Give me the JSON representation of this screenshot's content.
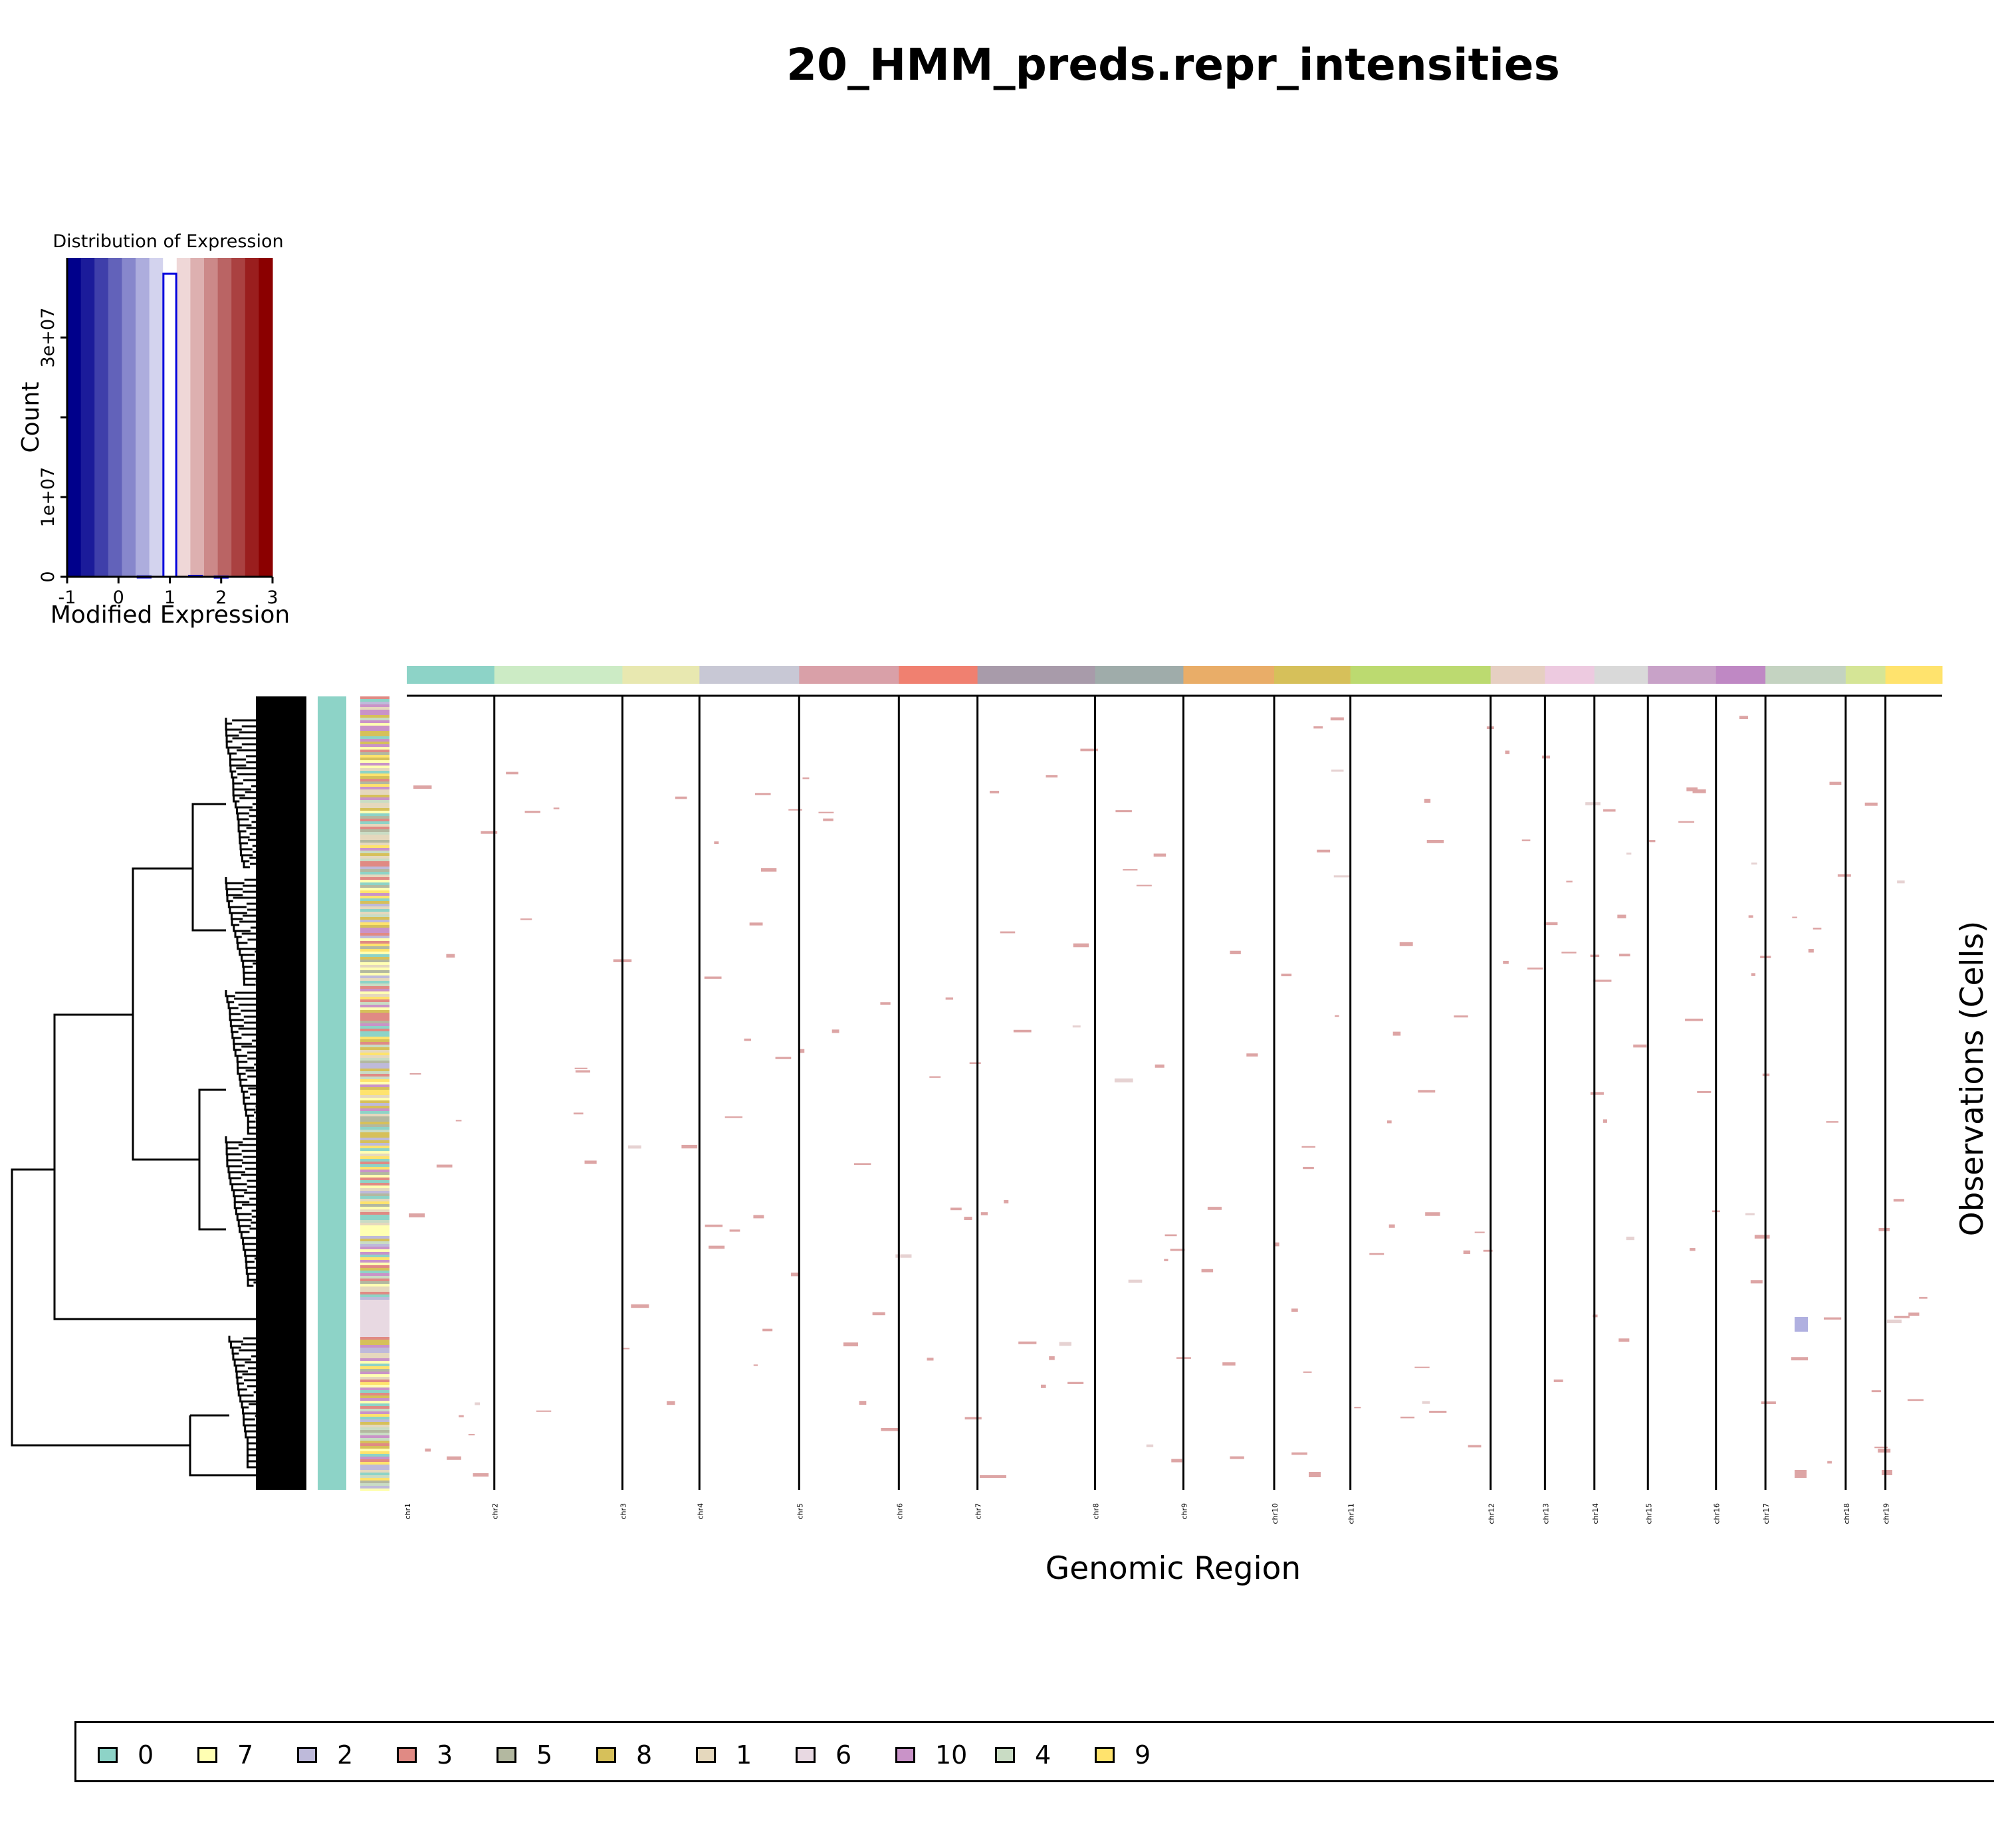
{
  "chart_data": {
    "type": "heatmap",
    "title": "20_HMM_preds.repr_intensities",
    "xlabel": "Genomic Region",
    "ylabel": "Observations (Cells)",
    "histogram": {
      "title": "Distribution of Expression",
      "xlabel": "Modified Expression",
      "ylabel": "Count",
      "x_ticks": [
        "-1",
        "0",
        "1",
        "2",
        "3"
      ],
      "y_ticks": [
        "0",
        "1e+07",
        "3e+07"
      ],
      "xlim": [
        -1,
        3
      ],
      "ylim": [
        0,
        40000000
      ],
      "bins": [
        {
          "x": 1.0,
          "count": 38000000
        },
        {
          "x": 1.5,
          "count": 120000
        },
        {
          "x": 0.5,
          "count": 40000
        },
        {
          "x": 2.0,
          "count": 30000
        }
      ],
      "color_scale": [
        "#00008B",
        "#1B1B9A",
        "#3F3FAA",
        "#6262BA",
        "#8787CC",
        "#ADADDD",
        "#D3D3EE",
        "#FFFFFF",
        "#EFD7D7",
        "#DDB0B0",
        "#CC8989",
        "#BA6464",
        "#AA4141",
        "#9A1E1E",
        "#8B0000"
      ]
    },
    "chromosomes": [
      {
        "name": "chr1",
        "length": 1.08,
        "color": "#8DD3C7"
      },
      {
        "name": "chr2",
        "length": 1.58,
        "color": "#CCEBC5"
      },
      {
        "name": "chr3",
        "length": 0.95,
        "color": "#E8E8B0"
      },
      {
        "name": "chr4",
        "length": 1.23,
        "color": "#C8C8D5"
      },
      {
        "name": "chr5",
        "length": 1.23,
        "color": "#D9A0A8"
      },
      {
        "name": "chr6",
        "length": 0.97,
        "color": "#F08070"
      },
      {
        "name": "chr7",
        "length": 1.45,
        "color": "#A89BAA"
      },
      {
        "name": "chr8",
        "length": 1.09,
        "color": "#9FACAA"
      },
      {
        "name": "chr9",
        "length": 1.12,
        "color": "#E9AD68"
      },
      {
        "name": "chr10",
        "length": 0.94,
        "color": "#D6C05A"
      },
      {
        "name": "chr11",
        "length": 1.73,
        "color": "#BCDA70"
      },
      {
        "name": "chr12",
        "length": 0.67,
        "color": "#E6CFC2"
      },
      {
        "name": "chr13",
        "length": 0.61,
        "color": "#EDCAE0"
      },
      {
        "name": "chr14",
        "length": 0.66,
        "color": "#D9D9D9"
      },
      {
        "name": "chr15",
        "length": 0.84,
        "color": "#C8A2C8"
      },
      {
        "name": "chr16",
        "length": 0.61,
        "color": "#BF88C4"
      },
      {
        "name": "chr17",
        "length": 0.99,
        "color": "#C4D3C1"
      },
      {
        "name": "chr18",
        "length": 0.49,
        "color": "#D5E596"
      },
      {
        "name": "chr19",
        "length": 0.7,
        "color": "#FFE36D"
      }
    ],
    "top_strip_colors": [
      "#8DD3C7",
      "#CCEBC5",
      "#E8E8B0",
      "#C8C8D5",
      "#D9A0A8",
      "#F08070",
      "#A89BAA",
      "#9FACAA",
      "#E9AD68",
      "#D6C05A",
      "#BCDA70",
      "#E6CFC2",
      "#EDCAE0",
      "#D9D9D9",
      "#C8A2C8",
      "#BF88C4",
      "#C4D3C1",
      "#D5E596",
      "#FFE36D"
    ],
    "legend": [
      {
        "label": "0",
        "color": "#8DD3C7"
      },
      {
        "label": "7",
        "color": "#FFFFB3"
      },
      {
        "label": "2",
        "color": "#BEBADA"
      },
      {
        "label": "3",
        "color": "#E08A84"
      },
      {
        "label": "5",
        "color": "#B3B8A0"
      },
      {
        "label": "8",
        "color": "#D6C05A"
      },
      {
        "label": "1",
        "color": "#E5D8BD"
      },
      {
        "label": "6",
        "color": "#E8D9E2"
      },
      {
        "label": "10",
        "color": "#C993C8"
      },
      {
        "label": "4",
        "color": "#C9DCC4"
      },
      {
        "label": "9",
        "color": "#FFE36D"
      }
    ],
    "cell_annotation_colors": [
      "#FFFFB3",
      "#BEBADA",
      "#E08A84",
      "#B3B8A0",
      "#D6C05A",
      "#E5D8BD",
      "#C993C8",
      "#C9DCC4",
      "#FFE36D",
      "#8DD3C7"
    ],
    "reference_group_color": "#8DD3C7",
    "gain_color": "#DDA5A5",
    "loss_color": "#B0B0E0"
  }
}
